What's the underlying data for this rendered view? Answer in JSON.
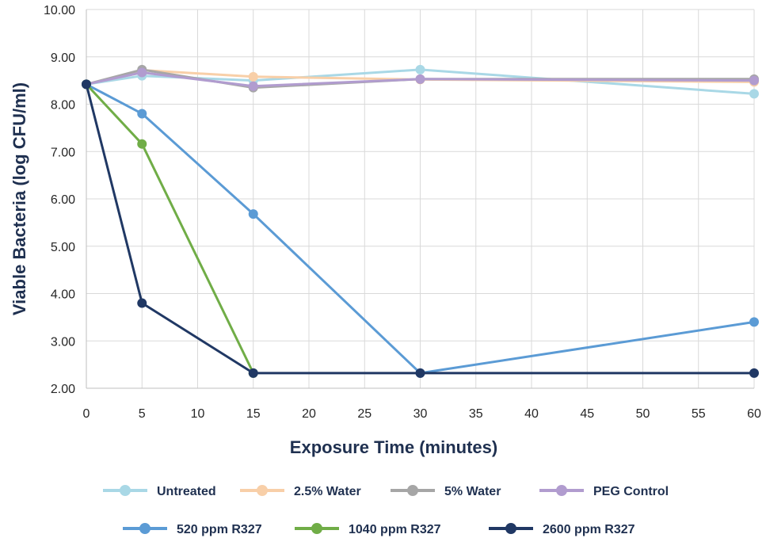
{
  "chart_data": {
    "type": "line",
    "title": "",
    "xlabel": "Exposure Time (minutes)",
    "ylabel": "Viable Bacteria (log CFU/ml)",
    "xlim": [
      0,
      60
    ],
    "ylim": [
      2.0,
      10.0
    ],
    "x_ticks": [
      "0",
      "5",
      "10",
      "15",
      "20",
      "25",
      "30",
      "35",
      "40",
      "45",
      "50",
      "55",
      "60"
    ],
    "y_ticks": [
      "2.00",
      "3.00",
      "4.00",
      "5.00",
      "6.00",
      "7.00",
      "8.00",
      "9.00",
      "10.00"
    ],
    "grid": true,
    "legend_position": "bottom",
    "x": [
      0,
      5,
      15,
      30,
      60
    ],
    "series": [
      {
        "name": "Untreated",
        "color": "#a9d8e6",
        "x": [
          0,
          5,
          15,
          30,
          60
        ],
        "values": [
          8.42,
          8.6,
          8.5,
          8.73,
          8.22
        ]
      },
      {
        "name": "2.5% Water",
        "color": "#f8cfa8",
        "x": [
          0,
          5,
          15,
          30,
          60
        ],
        "values": [
          8.42,
          8.72,
          8.58,
          8.52,
          8.47
        ]
      },
      {
        "name": "5% Water",
        "color": "#a6a6a6",
        "x": [
          0,
          5,
          15,
          30,
          60
        ],
        "values": [
          8.42,
          8.73,
          8.35,
          8.53,
          8.53
        ]
      },
      {
        "name": "PEG Control",
        "color": "#b19ccf",
        "x": [
          0,
          5,
          15,
          30,
          60
        ],
        "values": [
          8.42,
          8.67,
          8.38,
          8.53,
          8.5
        ]
      },
      {
        "name": "520 ppm R327",
        "color": "#5b9bd5",
        "x": [
          0,
          5,
          15,
          30,
          60
        ],
        "values": [
          8.42,
          7.8,
          5.68,
          2.32,
          3.4
        ]
      },
      {
        "name": "1040 ppm R327",
        "color": "#70ad47",
        "x": [
          0,
          5,
          15
        ],
        "values": [
          8.42,
          7.16,
          2.32
        ]
      },
      {
        "name": "2600 ppm R327",
        "color": "#203864",
        "x": [
          0,
          5,
          15,
          30,
          60
        ],
        "values": [
          8.42,
          3.8,
          2.32,
          2.32,
          2.32
        ]
      }
    ]
  }
}
